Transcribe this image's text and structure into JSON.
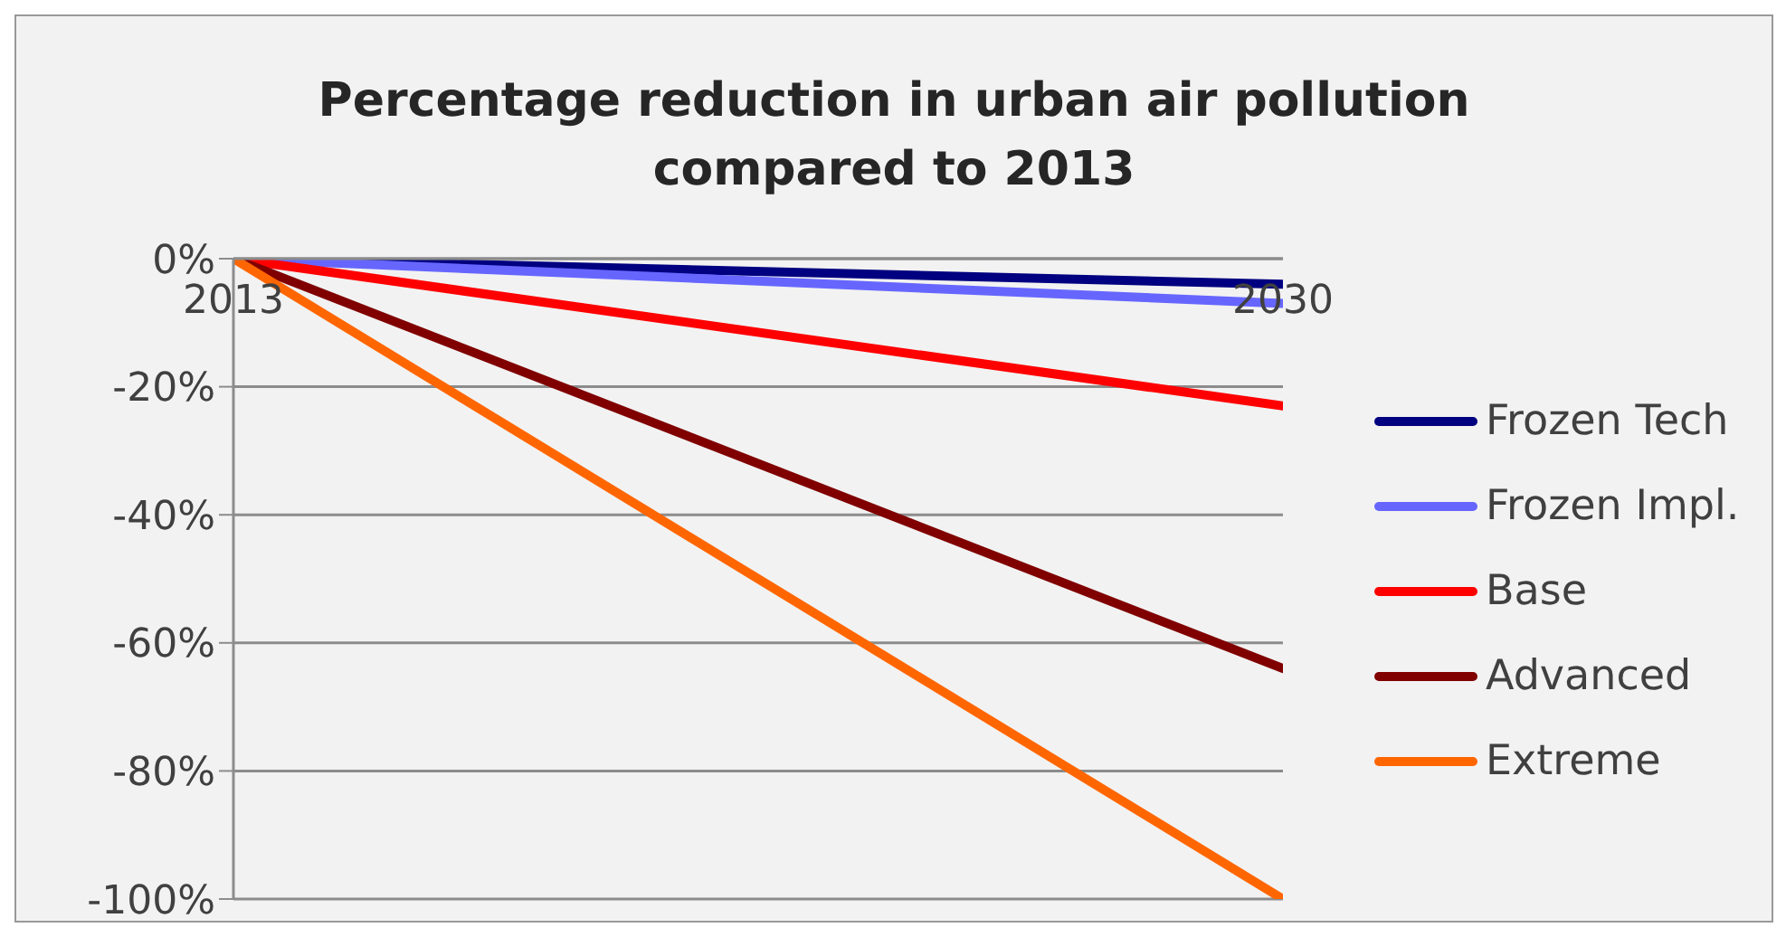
{
  "chart_data": {
    "type": "line",
    "title": "Percentage reduction in urban air pollution\ncompared to 2013",
    "x": [
      2013,
      2030
    ],
    "xlim": [
      2013,
      2030
    ],
    "xticks": [
      2013,
      2030
    ],
    "series": [
      {
        "name": "Frozen Tech",
        "color": "#000080",
        "values": [
          0,
          -4
        ]
      },
      {
        "name": "Frozen Impl.",
        "color": "#6666ff",
        "values": [
          0,
          -7
        ]
      },
      {
        "name": "Base",
        "color": "#ff0000",
        "values": [
          0,
          -23
        ]
      },
      {
        "name": "Advanced",
        "color": "#800000",
        "values": [
          0,
          -64
        ]
      },
      {
        "name": "Extreme",
        "color": "#ff6600",
        "values": [
          0,
          -100
        ]
      }
    ],
    "ylim": [
      -100,
      0
    ],
    "yticks": [
      {
        "value": 0,
        "label": "0%"
      },
      {
        "value": -20,
        "label": "-20%"
      },
      {
        "value": -40,
        "label": "-40%"
      },
      {
        "value": -60,
        "label": "-60%"
      },
      {
        "value": -80,
        "label": "-80%"
      },
      {
        "value": -100,
        "label": "-100%"
      }
    ],
    "grid": "y",
    "legend": "right",
    "marker": "none",
    "line_style": "solid"
  }
}
